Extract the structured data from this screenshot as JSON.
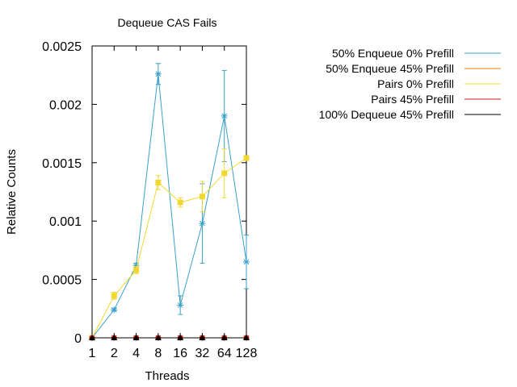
{
  "chart_data": {
    "type": "line",
    "title": "Dequeue CAS Fails",
    "xlabel": "Threads",
    "ylabel": "Relative Counts",
    "categories": [
      "1",
      "2",
      "4",
      "8",
      "16",
      "32",
      "64",
      "128"
    ],
    "ylim": [
      0,
      0.0025
    ],
    "yticks": [
      "0",
      "0.0005",
      "0.001",
      "0.0015",
      "0.002",
      "0.0025"
    ],
    "grid": false,
    "legend_position": "top-right",
    "series": [
      {
        "name": "50% Enqueue 0% Prefill",
        "color": "#3aa0c8",
        "marker": "asterisk",
        "values": [
          0,
          0.00024,
          0.00062,
          0.00226,
          0.00028,
          0.00098,
          0.0019,
          0.00065
        ],
        "errors": [
          0,
          1e-05,
          2e-05,
          9e-05,
          8e-05,
          0.00034,
          0.00039,
          0.00023
        ]
      },
      {
        "name": "50% Enqueue 45% Prefill",
        "color": "#e87e00",
        "marker": "cross",
        "values": [
          0,
          0,
          0,
          0,
          0,
          0,
          0,
          0
        ],
        "errors": [
          0,
          0,
          0,
          0,
          0,
          0,
          0,
          0
        ]
      },
      {
        "name": "Pairs 0% Prefill",
        "color": "#f0d830",
        "marker": "square",
        "values": [
          0,
          0.00036,
          0.00058,
          0.00133,
          0.00116,
          0.00121,
          0.00141,
          0.00154
        ],
        "errors": [
          0,
          3e-05,
          3e-05,
          6e-05,
          4e-05,
          0.00013,
          0.00021,
          2e-05
        ]
      },
      {
        "name": "Pairs 45% Prefill",
        "color": "#d81818",
        "marker": "circle",
        "values": [
          0,
          0,
          0,
          0,
          0,
          0,
          0,
          0
        ],
        "errors": [
          0,
          0,
          0,
          0,
          0,
          0,
          0,
          0
        ]
      },
      {
        "name": "100% Dequeue 45% Prefill",
        "color": "#000000",
        "marker": "triangle",
        "values": [
          0,
          0,
          0,
          0,
          0,
          0,
          0,
          0
        ],
        "errors": [
          0,
          0,
          0,
          0,
          0,
          0,
          0,
          0
        ]
      }
    ]
  }
}
